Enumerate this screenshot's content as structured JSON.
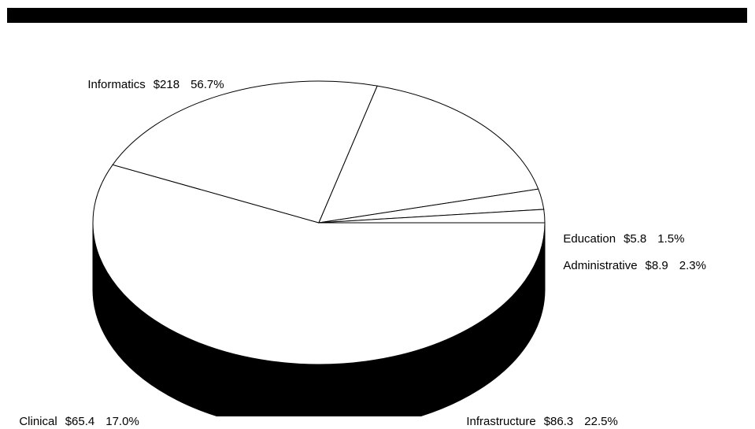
{
  "chart_data": {
    "type": "pie",
    "style": "3d",
    "slices": [
      {
        "label": "Informatics",
        "value": 218,
        "value_label": "$218",
        "percent": 56.7,
        "percent_label": "56.7%"
      },
      {
        "label": "Infrastructure",
        "value": 86.3,
        "value_label": "$86.3",
        "percent": 22.5,
        "percent_label": "22.5%"
      },
      {
        "label": "Clinical",
        "value": 65.4,
        "value_label": "$65.4",
        "percent": 17.0,
        "percent_label": "17.0%"
      },
      {
        "label": "Administrative",
        "value": 8.9,
        "value_label": "$8.9",
        "percent": 2.3,
        "percent_label": "2.3%"
      },
      {
        "label": "Education",
        "value": 5.8,
        "value_label": "$5.8",
        "percent": 1.5,
        "percent_label": "1.5%"
      }
    ],
    "colors": {
      "slice_fill": "#ffffff",
      "side_fill": "#000000",
      "outline": "#000000",
      "banner": "#000000"
    }
  }
}
